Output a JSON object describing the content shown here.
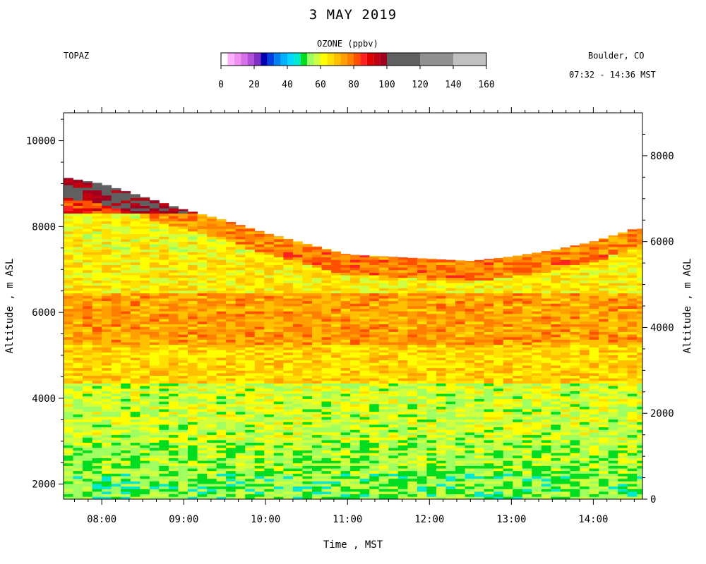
{
  "header": {
    "title": "3 MAY 2019",
    "station": "TOPAZ",
    "location": "Boulder, CO",
    "time_range": "07:32 - 14:36 MST"
  },
  "colorbar": {
    "title": "OZONE (ppbv)",
    "tick_labels": [
      "0",
      "20",
      "40",
      "60",
      "80",
      "100",
      "120",
      "140",
      "160"
    ],
    "bins": [
      {
        "lo": 0,
        "hi": 4,
        "color": "#ffffff"
      },
      {
        "lo": 4,
        "hi": 8,
        "color": "#ffb0ff"
      },
      {
        "lo": 8,
        "hi": 12,
        "color": "#f090f0"
      },
      {
        "lo": 12,
        "hi": 16,
        "color": "#d870e8"
      },
      {
        "lo": 16,
        "hi": 20,
        "color": "#b050d8"
      },
      {
        "lo": 20,
        "hi": 24,
        "color": "#8030c0"
      },
      {
        "lo": 24,
        "hi": 28,
        "color": "#0000b0"
      },
      {
        "lo": 28,
        "hi": 32,
        "color": "#0040e0"
      },
      {
        "lo": 32,
        "hi": 36,
        "color": "#0080f0"
      },
      {
        "lo": 36,
        "hi": 40,
        "color": "#00b0ff"
      },
      {
        "lo": 40,
        "hi": 44,
        "color": "#00d8ff"
      },
      {
        "lo": 44,
        "hi": 48,
        "color": "#00e8d0"
      },
      {
        "lo": 48,
        "hi": 52,
        "color": "#00dd20"
      },
      {
        "lo": 52,
        "hi": 56,
        "color": "#a0ff60"
      },
      {
        "lo": 56,
        "hi": 60,
        "color": "#d0ff40"
      },
      {
        "lo": 60,
        "hi": 64,
        "color": "#ffff00"
      },
      {
        "lo": 64,
        "hi": 68,
        "color": "#ffe000"
      },
      {
        "lo": 68,
        "hi": 72,
        "color": "#ffc000"
      },
      {
        "lo": 72,
        "hi": 76,
        "color": "#ffa000"
      },
      {
        "lo": 76,
        "hi": 80,
        "color": "#ff8000"
      },
      {
        "lo": 80,
        "hi": 84,
        "color": "#ff5000"
      },
      {
        "lo": 84,
        "hi": 88,
        "color": "#ff2020"
      },
      {
        "lo": 88,
        "hi": 92,
        "color": "#e00000"
      },
      {
        "lo": 92,
        "hi": 96,
        "color": "#c00010"
      },
      {
        "lo": 96,
        "hi": 100,
        "color": "#a00020"
      },
      {
        "lo": 100,
        "hi": 120,
        "color": "#606060"
      },
      {
        "lo": 120,
        "hi": 140,
        "color": "#909090"
      },
      {
        "lo": 140,
        "hi": 160,
        "color": "#c0c0c0"
      }
    ]
  },
  "chart_data": {
    "type": "heatmap",
    "title": "3 MAY 2019",
    "xlabel": "Time , MST",
    "ylabel_left": "Altitude , m ASL",
    "ylabel_right": "Altitude , m AGL",
    "x_ticks": [
      "08:00",
      "09:00",
      "10:00",
      "11:00",
      "12:00",
      "13:00",
      "14:00"
    ],
    "y_ticks_left": [
      2000,
      4000,
      6000,
      8000,
      10000
    ],
    "y_ticks_right": [
      0,
      2000,
      4000,
      6000,
      8000
    ],
    "xlim": [
      "07:32",
      "14:36"
    ],
    "ylim_asl": [
      1650,
      10650
    ],
    "surface_altitude_asl": 1650,
    "color_scale": "OZONE (ppbv)",
    "profile_top_asl": [
      {
        "time": "07:32",
        "top": 9150
      },
      {
        "time": "08:00",
        "top": 9000
      },
      {
        "time": "08:30",
        "top": 8700
      },
      {
        "time": "09:00",
        "top": 8400
      },
      {
        "time": "09:30",
        "top": 8150
      },
      {
        "time": "10:00",
        "top": 7850
      },
      {
        "time": "10:30",
        "top": 7600
      },
      {
        "time": "11:00",
        "top": 7350
      },
      {
        "time": "11:30",
        "top": 7300
      },
      {
        "time": "12:00",
        "top": 7250
      },
      {
        "time": "12:30",
        "top": 7200
      },
      {
        "time": "13:00",
        "top": 7300
      },
      {
        "time": "13:30",
        "top": 7450
      },
      {
        "time": "14:00",
        "top": 7650
      },
      {
        "time": "14:30",
        "top": 7950
      }
    ],
    "ozone_layers_ppbv": [
      {
        "alt_lo": 1650,
        "alt_hi": 2200,
        "ozone": 53
      },
      {
        "alt_lo": 2200,
        "alt_hi": 3000,
        "ozone": 55
      },
      {
        "alt_lo": 3000,
        "alt_hi": 4300,
        "ozone": 58
      },
      {
        "alt_lo": 4300,
        "alt_hi": 5200,
        "ozone": 67
      },
      {
        "alt_lo": 5200,
        "alt_hi": 6400,
        "ozone": 74
      },
      {
        "alt_lo": 6400,
        "alt_hi": 7400,
        "ozone": 64
      },
      {
        "alt_lo": 7400,
        "alt_hi": 8300,
        "ozone": 62
      },
      {
        "alt_lo": 8300,
        "alt_hi": 9200,
        "ozone": 86
      }
    ]
  }
}
